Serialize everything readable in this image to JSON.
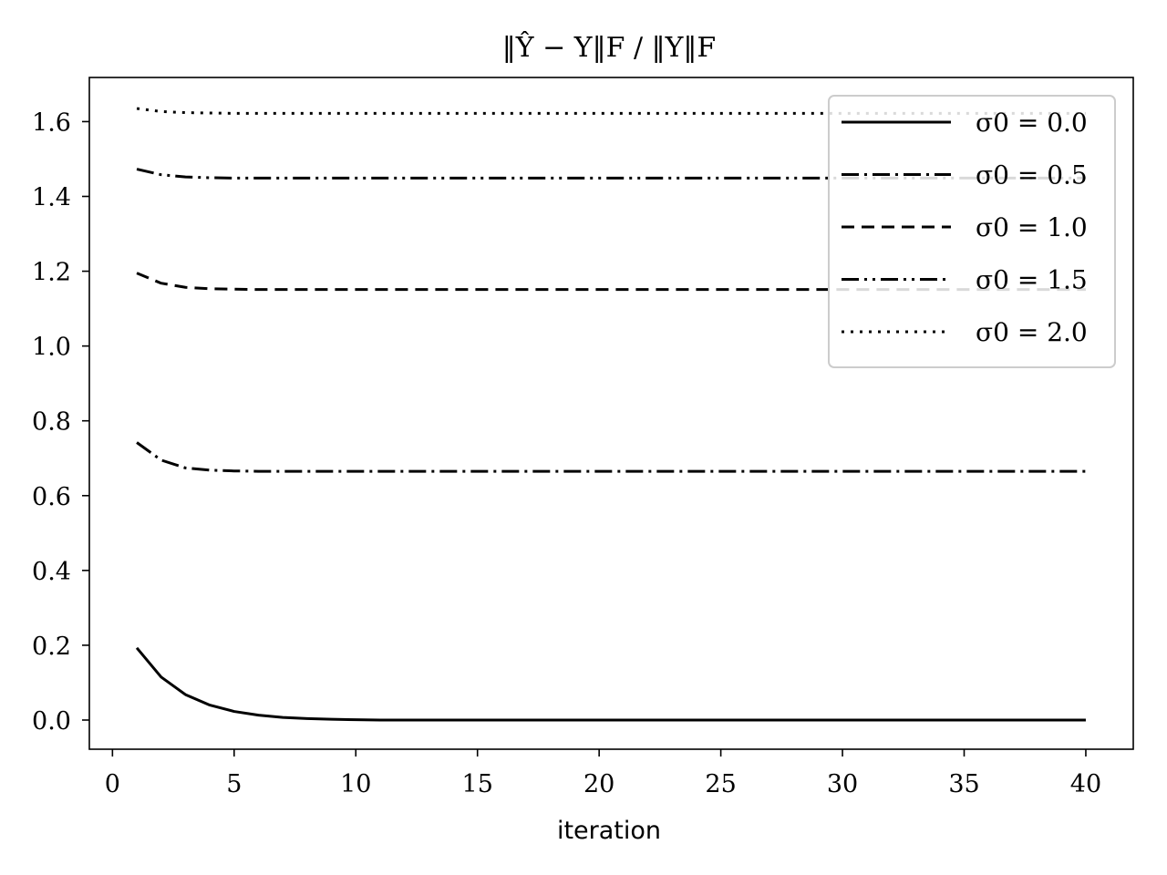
{
  "chart_data": {
    "type": "line",
    "title": "‖Ŷ − Y‖F / ‖Y‖F",
    "xlabel": "iteration",
    "ylabel": "",
    "xlim": [
      -0.95,
      41.95
    ],
    "ylim": [
      -0.078,
      1.718
    ],
    "xticks": [
      0,
      5,
      10,
      15,
      20,
      25,
      30,
      35,
      40
    ],
    "xtick_labels": [
      "0",
      "5",
      "10",
      "15",
      "20",
      "25",
      "30",
      "35",
      "40"
    ],
    "yticks": [
      0.0,
      0.2,
      0.4,
      0.6,
      0.8,
      1.0,
      1.2,
      1.4,
      1.6
    ],
    "ytick_labels": [
      "0.0",
      "0.2",
      "0.4",
      "0.6",
      "0.8",
      "1.0",
      "1.2",
      "1.4",
      "1.6"
    ],
    "grid": false,
    "legend_position": "top-right",
    "x": [
      1,
      2,
      3,
      4,
      5,
      6,
      7,
      8,
      9,
      10,
      11,
      12,
      13,
      14,
      15,
      16,
      17,
      18,
      19,
      20,
      21,
      22,
      23,
      24,
      25,
      26,
      27,
      28,
      29,
      30,
      31,
      32,
      33,
      34,
      35,
      36,
      37,
      38,
      39,
      40
    ],
    "series": [
      {
        "name": "σ0 = 0.0",
        "style": "solid",
        "values": [
          0.193,
          0.115,
          0.068,
          0.04,
          0.023,
          0.013,
          0.007,
          0.004,
          0.002,
          0.001,
          0,
          0,
          0,
          0,
          0,
          0,
          0,
          0,
          0,
          0,
          0,
          0,
          0,
          0,
          0,
          0,
          0,
          0,
          0,
          0,
          0,
          0,
          0,
          0,
          0,
          0,
          0,
          0,
          0,
          0
        ]
      },
      {
        "name": "σ0 = 0.5",
        "style": "dashdot",
        "values": [
          0.742,
          0.695,
          0.674,
          0.668,
          0.666,
          0.665,
          0.665,
          0.665,
          0.665,
          0.665,
          0.665,
          0.665,
          0.665,
          0.665,
          0.665,
          0.665,
          0.665,
          0.665,
          0.665,
          0.665,
          0.665,
          0.665,
          0.665,
          0.665,
          0.665,
          0.665,
          0.665,
          0.665,
          0.665,
          0.665,
          0.665,
          0.665,
          0.665,
          0.665,
          0.665,
          0.665,
          0.665,
          0.665,
          0.665,
          0.665
        ]
      },
      {
        "name": "σ0 = 1.0",
        "style": "dashed",
        "values": [
          1.195,
          1.168,
          1.157,
          1.153,
          1.152,
          1.151,
          1.151,
          1.151,
          1.151,
          1.151,
          1.151,
          1.151,
          1.151,
          1.151,
          1.151,
          1.151,
          1.151,
          1.151,
          1.151,
          1.151,
          1.151,
          1.151,
          1.151,
          1.151,
          1.151,
          1.151,
          1.151,
          1.151,
          1.151,
          1.151,
          1.151,
          1.151,
          1.151,
          1.151,
          1.151,
          1.151,
          1.151,
          1.151,
          1.151,
          1.151
        ]
      },
      {
        "name": "σ0 = 1.5",
        "style": "dashdotdot",
        "values": [
          1.473,
          1.458,
          1.452,
          1.45,
          1.449,
          1.449,
          1.449,
          1.449,
          1.449,
          1.449,
          1.449,
          1.449,
          1.449,
          1.449,
          1.449,
          1.449,
          1.449,
          1.449,
          1.449,
          1.449,
          1.449,
          1.449,
          1.449,
          1.449,
          1.449,
          1.449,
          1.449,
          1.449,
          1.449,
          1.449,
          1.449,
          1.449,
          1.449,
          1.449,
          1.449,
          1.449,
          1.449,
          1.449,
          1.449,
          1.449
        ]
      },
      {
        "name": "σ0 = 2.0",
        "style": "dotted",
        "values": [
          1.635,
          1.627,
          1.624,
          1.623,
          1.622,
          1.622,
          1.622,
          1.622,
          1.622,
          1.622,
          1.622,
          1.622,
          1.622,
          1.622,
          1.622,
          1.622,
          1.622,
          1.622,
          1.622,
          1.622,
          1.622,
          1.622,
          1.622,
          1.622,
          1.622,
          1.622,
          1.622,
          1.622,
          1.622,
          1.622,
          1.622,
          1.622,
          1.622,
          1.622,
          1.622,
          1.622,
          1.622,
          1.622,
          1.622,
          1.622
        ]
      }
    ]
  }
}
